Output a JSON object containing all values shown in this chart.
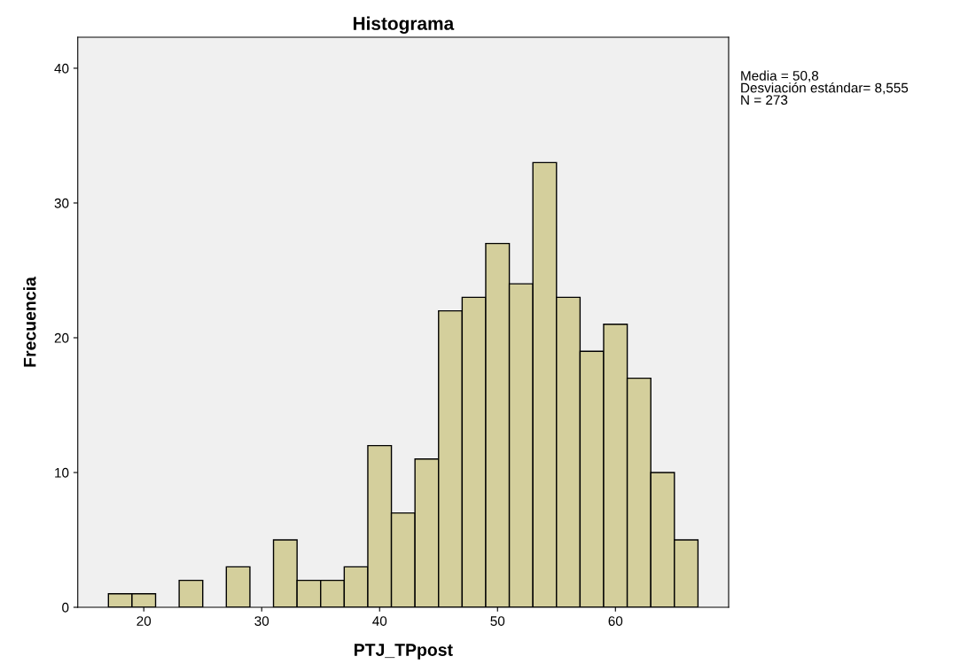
{
  "chart_data": {
    "type": "histogram",
    "title": "Histograma",
    "xlabel": "PTJ_TPpost",
    "ylabel": "Frecuencia",
    "bins": [
      17,
      19,
      21,
      23,
      25,
      27,
      29,
      31,
      33,
      35,
      37,
      39,
      41,
      43,
      45,
      47,
      49,
      51,
      53,
      55,
      57,
      59,
      61,
      63,
      65,
      67
    ],
    "values": [
      1,
      1,
      0,
      2,
      0,
      3,
      0,
      5,
      2,
      2,
      3,
      12,
      7,
      11,
      22,
      23,
      27,
      24,
      33,
      23,
      19,
      21,
      17,
      10,
      5
    ],
    "color": "#d4cf9c",
    "xlim": [
      14.4,
      69.6
    ],
    "xticks": [
      20,
      30,
      40,
      50,
      60
    ],
    "ylim": [
      0,
      42.3
    ],
    "yticks": [
      0,
      10,
      20,
      30,
      40
    ],
    "grid": false,
    "annotations": [
      "Media = 50,8",
      "Desviación estándar= 8,555",
      "N = 273"
    ]
  }
}
